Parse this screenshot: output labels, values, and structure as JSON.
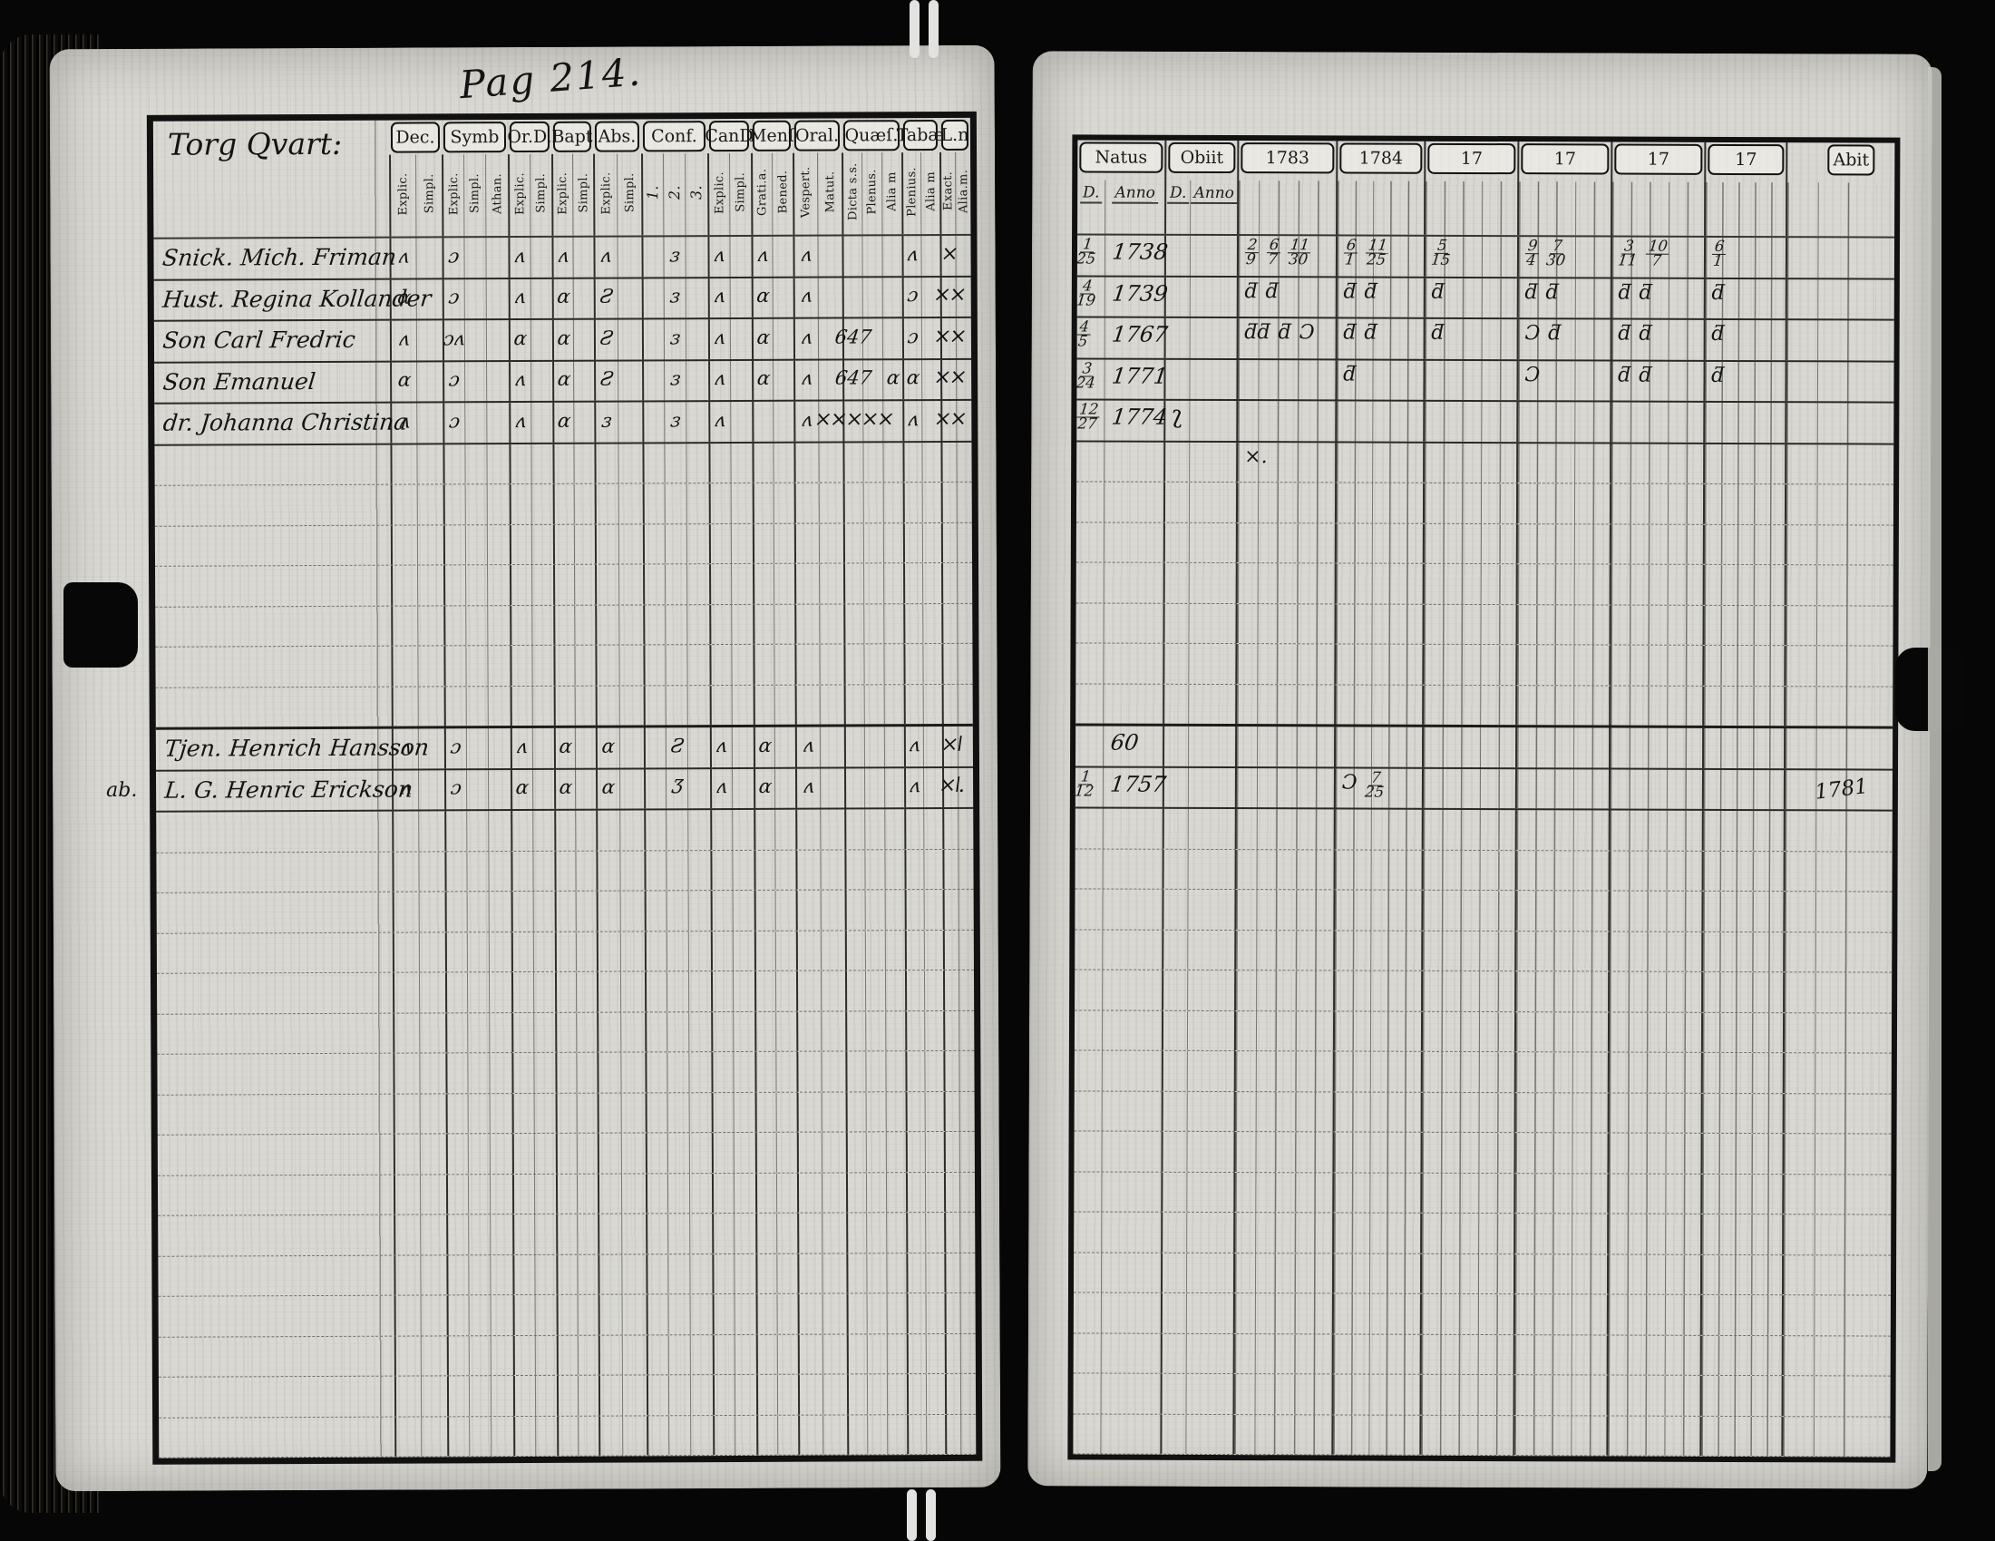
{
  "document": {
    "page_label": "Pag 214.",
    "colors": {
      "paper": "#d9d8d2",
      "ink": "#1a1a1a",
      "background": "#060606"
    },
    "left_page": {
      "heading": "Torg Qvart:",
      "row_count": 30,
      "columns": [
        {
          "label": "Dec.",
          "subs": [
            "Explic.",
            "Simpl."
          ]
        },
        {
          "label": "Symb",
          "subs": [
            "Explic.",
            "Simpl.",
            "Athan."
          ]
        },
        {
          "label": "Or.D.",
          "subs": [
            "Explic.",
            "Simpl."
          ]
        },
        {
          "label": "Bapt",
          "subs": [
            "Explic.",
            "Simpl."
          ]
        },
        {
          "label": "Abs.",
          "subs": [
            "Explic.",
            "Simpl."
          ]
        },
        {
          "label": "Conf.",
          "subs": [
            "1.",
            "2.",
            "3."
          ]
        },
        {
          "label": "CanD",
          "subs": [
            "Explic.",
            "Simpl."
          ]
        },
        {
          "label": "Menſ",
          "subs": [
            "Grati.a.",
            "Bened."
          ]
        },
        {
          "label": "Oral.",
          "subs": [
            "Vespert.",
            "Matut."
          ]
        },
        {
          "label": "Quæſ.",
          "subs": [
            "Dicta s.s.",
            "Plenus.",
            "Alia m"
          ]
        },
        {
          "label": "Tabæ",
          "subs": [
            "Plenius.",
            "Alia m"
          ]
        },
        {
          "label": "L.n",
          "subs": [
            "Exact.",
            "Alia.m."
          ]
        }
      ],
      "rows": [
        {
          "i": 0,
          "name": "Snick. Mich. Friman",
          "marks": {
            "0": "ʌ",
            "2": "ɔ",
            "5": "ʌ",
            "7": "ʌ",
            "9": "ʌ",
            "12": "ɜ",
            "14": "ʌ",
            "16": "ʌ",
            "18": "ʌ",
            "23": "ʌ",
            "25": "×"
          }
        },
        {
          "i": 1,
          "name": "Hust. Regina Kollander",
          "marks": {
            "0": "ɑ",
            "2": "ɔ",
            "5": "ʌ",
            "7": "ɑ",
            "9": "Ƨ",
            "12": "ɜ",
            "14": "ʌ",
            "16": "ɑ",
            "18": "ʌ",
            "23": "ɔ",
            "25": "××"
          }
        },
        {
          "i": 2,
          "name": "Son Carl Fredric",
          "marks": {
            "0": "ʌ",
            "2": "ɔʌ",
            "5": "ɑ",
            "7": "ɑ",
            "9": "Ƨ",
            "12": "ɜ",
            "14": "ʌ",
            "16": "ɑ",
            "18": "ʌ",
            "20": "647",
            "23": "ɔ",
            "25": "××"
          }
        },
        {
          "i": 3,
          "name": "Son Emanuel",
          "marks": {
            "0": "ɑ",
            "2": "ɔ",
            "5": "ʌ",
            "7": "ɑ",
            "9": "Ƨ",
            "12": "ɜ",
            "14": "ʌ",
            "16": "ɑ",
            "18": "ʌ",
            "20": "647",
            "22": "ɑ",
            "23": "ɑ",
            "25": "××"
          }
        },
        {
          "i": 4,
          "name": "dr. Johanna Christina",
          "marks": {
            "0": "ʌ",
            "2": "ɔ",
            "5": "ʌ",
            "7": "ɑ",
            "9": "ɜ",
            "12": "ɜ",
            "14": "ʌ",
            "18": "ʌ",
            "20": "×××××",
            "23": "ʌ",
            "25": "××"
          }
        },
        {
          "i": 12,
          "name": "Tjen. Henrich Hansson",
          "marks": {
            "0": "ʌ",
            "2": "ɔ",
            "5": "ʌ",
            "7": "ɑ",
            "9": "ɑ",
            "12": "Ƨ",
            "14": "ʌ",
            "16": "ɑ",
            "18": "ʌ",
            "23": "ʌ",
            "25": "×ǀ"
          }
        },
        {
          "i": 13,
          "name": "L. G. Henric Erickson",
          "margin": "ab.",
          "marks": {
            "0": "ʌ",
            "2": "ɔ",
            "5": "ɑ",
            "7": "ɑ",
            "9": "ɑ",
            "12": "Ʒ",
            "14": "ʌ",
            "16": "ɑ",
            "18": "ʌ",
            "23": "ʌ",
            "25": "×ǀ."
          }
        }
      ]
    },
    "right_page": {
      "row_count": 30,
      "natus": {
        "label": "Natus",
        "d": "D.",
        "anno": "Anno"
      },
      "obiit": {
        "label": "Obiit",
        "d": "D.",
        "anno": "Anno"
      },
      "years": [
        "1783",
        "1784",
        "17",
        "17",
        "17",
        "17"
      ],
      "abit_label": "Abit",
      "rows": [
        {
          "i": 0,
          "natus_d": "1/25",
          "natus_anno": "1738",
          "years": [
            "2/9 6/7 11/30",
            "6/1 11/25",
            "5/15",
            "9/4 7/30",
            "3/11 10/7",
            "6/1"
          ]
        },
        {
          "i": 1,
          "natus_d": "4/19",
          "natus_anno": "1739",
          "years": [
            "ƌ ƌ",
            "ƌ ƌ",
            "ƌ",
            "ƌ ƌ",
            "ƌ ƌ",
            "ƌ"
          ]
        },
        {
          "i": 2,
          "natus_d": "4/5",
          "natus_anno": "1767",
          "years": [
            "ƌƌ ƌ Ɔ",
            "ƌ ƌ",
            "ƌ",
            "Ɔ ƌ",
            "ƌ ƌ",
            "ƌ"
          ]
        },
        {
          "i": 3,
          "natus_d": "3/24",
          "natus_anno": "1771",
          "years": [
            "",
            "ƌ",
            "",
            "Ɔ",
            "ƌ ƌ",
            "ƌ"
          ]
        },
        {
          "i": 4,
          "natus_d": "12/27",
          "natus_anno": "1774",
          "obiit_d": "ʅ",
          "years": [
            "",
            "",
            "",
            "",
            "",
            ""
          ]
        },
        {
          "i": 5,
          "years": [
            "×.",
            "",
            "",
            "",
            "",
            ""
          ]
        },
        {
          "i": 12,
          "natus_anno": "60",
          "years": [
            "",
            "",
            "",
            "",
            "",
            ""
          ]
        },
        {
          "i": 13,
          "natus_d": "1/12",
          "natus_anno": "1757",
          "years": [
            "",
            "Ɔ 7/25",
            "",
            "",
            "",
            ""
          ],
          "abit": "1781"
        }
      ]
    }
  }
}
